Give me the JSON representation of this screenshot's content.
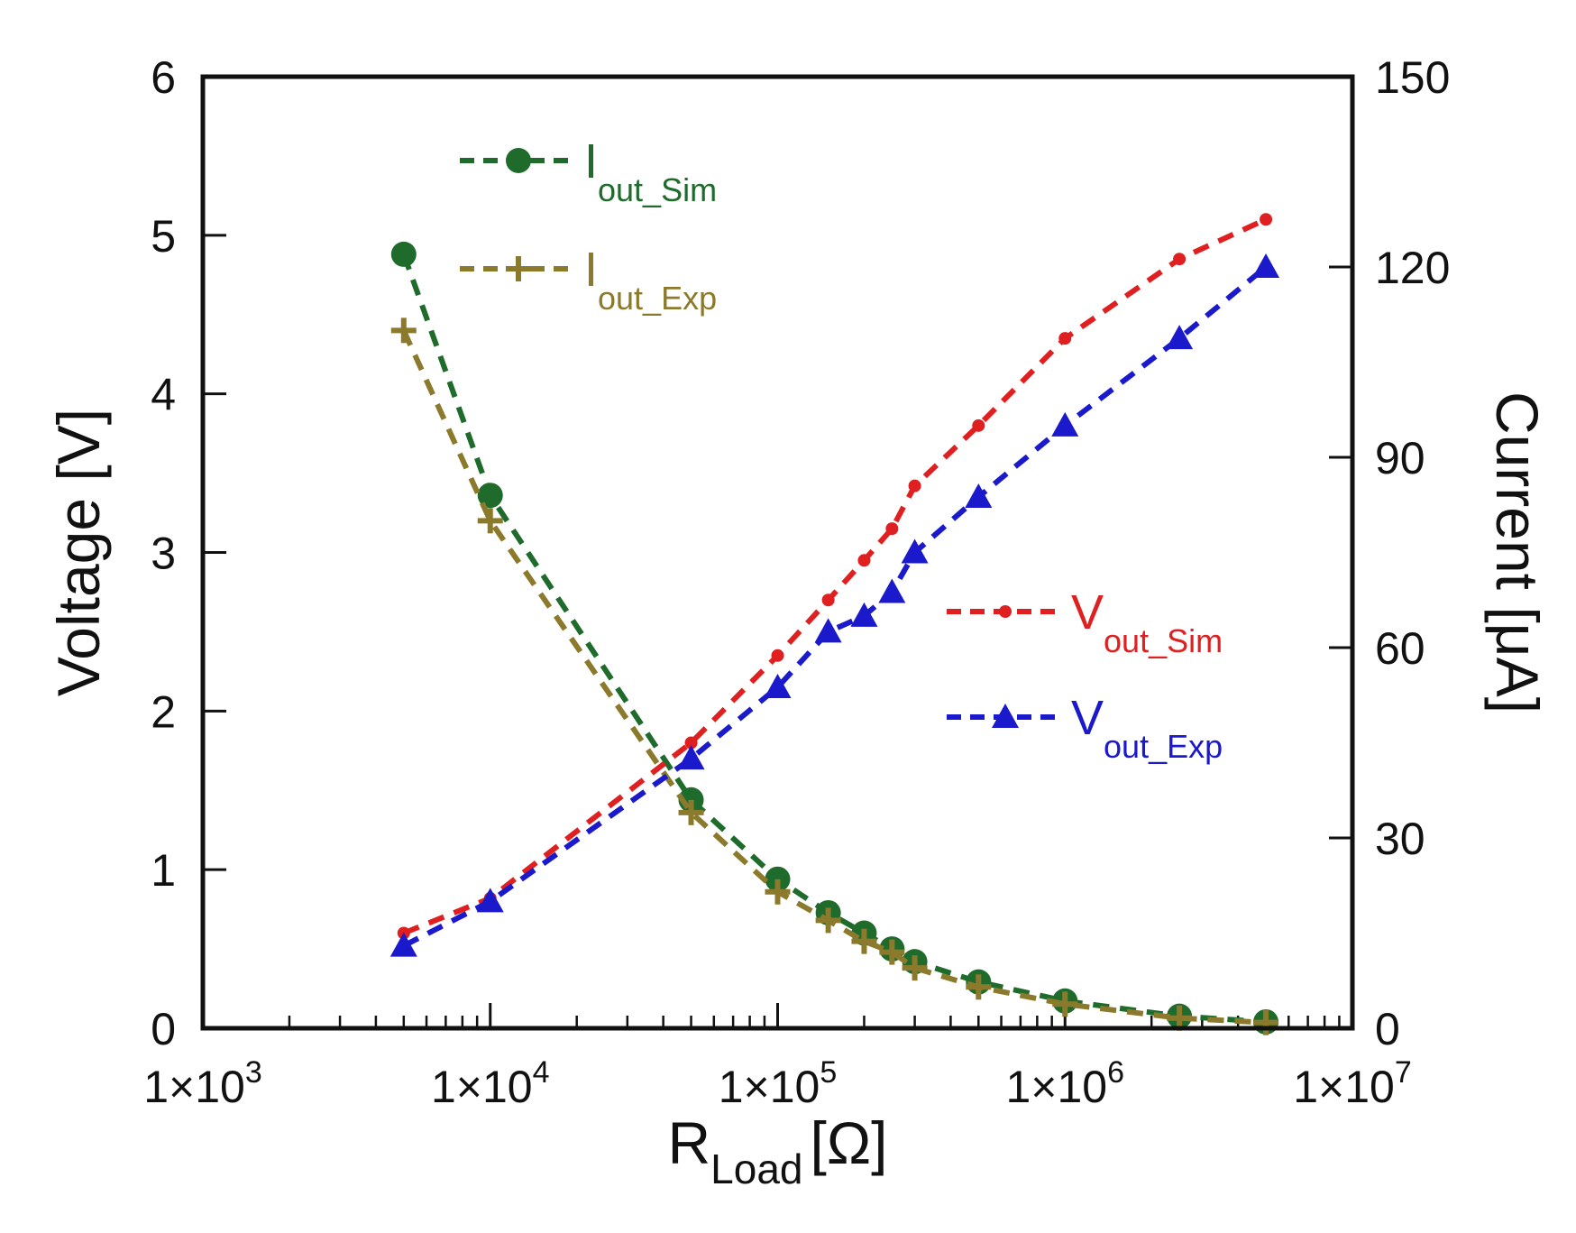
{
  "chart_data": {
    "type": "line",
    "x_label": {
      "main": "R",
      "sub": "Load",
      "unit": "[Ω]"
    },
    "y_left_label": "Voltage [V]",
    "y_right_label": "Current [μA]",
    "x_scale": "log",
    "x_range": [
      1000,
      10000000
    ],
    "x_ticks": [
      {
        "value": 1000,
        "label": "1×10",
        "exp": "3"
      },
      {
        "value": 10000,
        "label": "1×10",
        "exp": "4"
      },
      {
        "value": 100000,
        "label": "1×10",
        "exp": "5"
      },
      {
        "value": 1000000,
        "label": "1×10",
        "exp": "6"
      },
      {
        "value": 10000000,
        "label": "1×10",
        "exp": "7"
      }
    ],
    "y_left_range": [
      0,
      6
    ],
    "y_left_ticks": [
      "0",
      "1",
      "2",
      "3",
      "4",
      "5",
      "6"
    ],
    "y_right_range": [
      0,
      150
    ],
    "y_right_ticks": [
      "0",
      "30",
      "60",
      "90",
      "120",
      "150"
    ],
    "grid": false,
    "series": [
      {
        "name": "I",
        "sub": "out_Sim",
        "axis": "right",
        "color": "#1e6b2b",
        "marker": "circle",
        "x": [
          5000,
          10000,
          50000,
          100000,
          150000,
          200000,
          250000,
          300000,
          500000,
          1000000,
          2500000,
          5000000
        ],
        "y": [
          122,
          84,
          36,
          23.5,
          18.2,
          15,
          12.5,
          10.5,
          7.3,
          4.3,
          1.9,
          1
        ]
      },
      {
        "name": "I",
        "sub": "out_Exp",
        "axis": "right",
        "color": "#8c7a2c",
        "marker": "plus",
        "x": [
          5000,
          10000,
          50000,
          100000,
          150000,
          200000,
          250000,
          300000,
          500000,
          1000000,
          2500000,
          5000000
        ],
        "y": [
          110,
          80,
          34,
          21.5,
          17,
          13.7,
          12,
          9.5,
          6.5,
          3.8,
          1.6,
          0.9
        ]
      },
      {
        "name": "V",
        "sub": "out_Sim",
        "axis": "left",
        "color": "#e02020",
        "marker": "dot",
        "x": [
          5000,
          10000,
          50000,
          100000,
          150000,
          200000,
          250000,
          300000,
          500000,
          1000000,
          2500000,
          5000000
        ],
        "y": [
          0.6,
          0.82,
          1.8,
          2.35,
          2.7,
          2.95,
          3.15,
          3.42,
          3.8,
          4.35,
          4.85,
          5.1
        ]
      },
      {
        "name": "V",
        "sub": "out_Exp",
        "axis": "left",
        "color": "#1a1acc",
        "marker": "triangle",
        "x": [
          5000,
          10000,
          50000,
          100000,
          150000,
          200000,
          250000,
          300000,
          500000,
          1000000,
          2500000,
          5000000
        ],
        "y": [
          0.52,
          0.8,
          1.7,
          2.15,
          2.5,
          2.6,
          2.75,
          3.0,
          3.35,
          3.8,
          4.35,
          4.8
        ]
      }
    ]
  }
}
